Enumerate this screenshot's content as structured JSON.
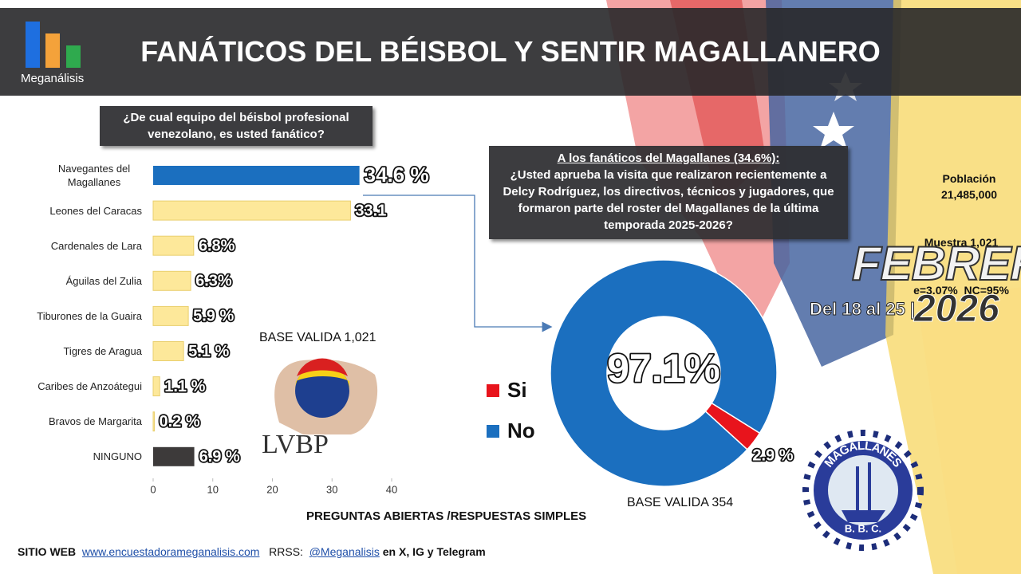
{
  "header": {
    "logo": "Meganálisis",
    "title": "FANÁTICOS DEL BÉISBOL Y SENTIR MAGALLANERO"
  },
  "chart_data": [
    {
      "type": "bar",
      "orientation": "horizontal",
      "title": "¿De cual equipo del béisbol profesional venezolano, es usted fanático?",
      "categories": [
        "Navegantes del Magallanes",
        "Leones del Caracas",
        "Cardenales de Lara",
        "Águilas del Zulia",
        "Tiburones de la Guaira",
        "Tigres de Aragua",
        "Caribes de Anzoátegui",
        "Bravos de Margarita",
        "NINGUNO"
      ],
      "values": [
        34.6,
        33.1,
        6.8,
        6.3,
        5.9,
        5.1,
        1.1,
        0.2,
        6.9
      ],
      "value_labels": [
        "34.6 %",
        "33.1",
        "6.8%",
        "6.3%",
        "5.9 %",
        "5.1 %",
        "1.1 %",
        "0.2 %",
        "6.9 %"
      ],
      "colors": [
        "#1b6fbf",
        "#fde89a",
        "#fde89a",
        "#fde89a",
        "#fde89a",
        "#fde89a",
        "#fde89a",
        "#fde89a",
        "#3d3a3a"
      ],
      "xlim": [
        0,
        40
      ],
      "xticks": [
        0,
        10,
        20,
        30,
        40
      ],
      "xlabel": "PREGUNTAS ABIERTAS /RESPUESTAS SIMPLES",
      "annotation": "BASE VALIDA 1,021"
    },
    {
      "type": "pie",
      "hole": 0.5,
      "title": "A los fanáticos del Magallanes (34.6%):",
      "subtitle": "¿Usted aprueba la visita que realizaron recientemente a Delcy Rodríguez, los directivos, técnicos y jugadores, que formaron parte del roster del Magallanes de la última temporada 2025-2026?",
      "categories": [
        "Si",
        "No"
      ],
      "values": [
        2.9,
        97.1
      ],
      "value_labels": [
        "2.9 %",
        "97.1%"
      ],
      "colors": [
        "#e8141c",
        "#1b6fbf"
      ],
      "legend": "left",
      "annotation": "BASE VALIDA 354"
    }
  ],
  "survey": {
    "population_label": "Población",
    "population": "21,485,000",
    "sample": "Muestra 1,021",
    "error": "e=3.07%  NC=95%"
  },
  "period": {
    "month": "FEBRERO",
    "days": "Del 18 al 25 |",
    "year": "2026"
  },
  "logos": {
    "league": "LVBP",
    "team": "MAGALLANES",
    "team_sub": "B. B. C."
  },
  "footer": {
    "web_label": "SITIO WEB",
    "web": "www.encuestadorameganalisis.com",
    "social_label": "RRSS:",
    "social": "@Meganalisis",
    "social_note": "en X, IG y Telegram"
  }
}
